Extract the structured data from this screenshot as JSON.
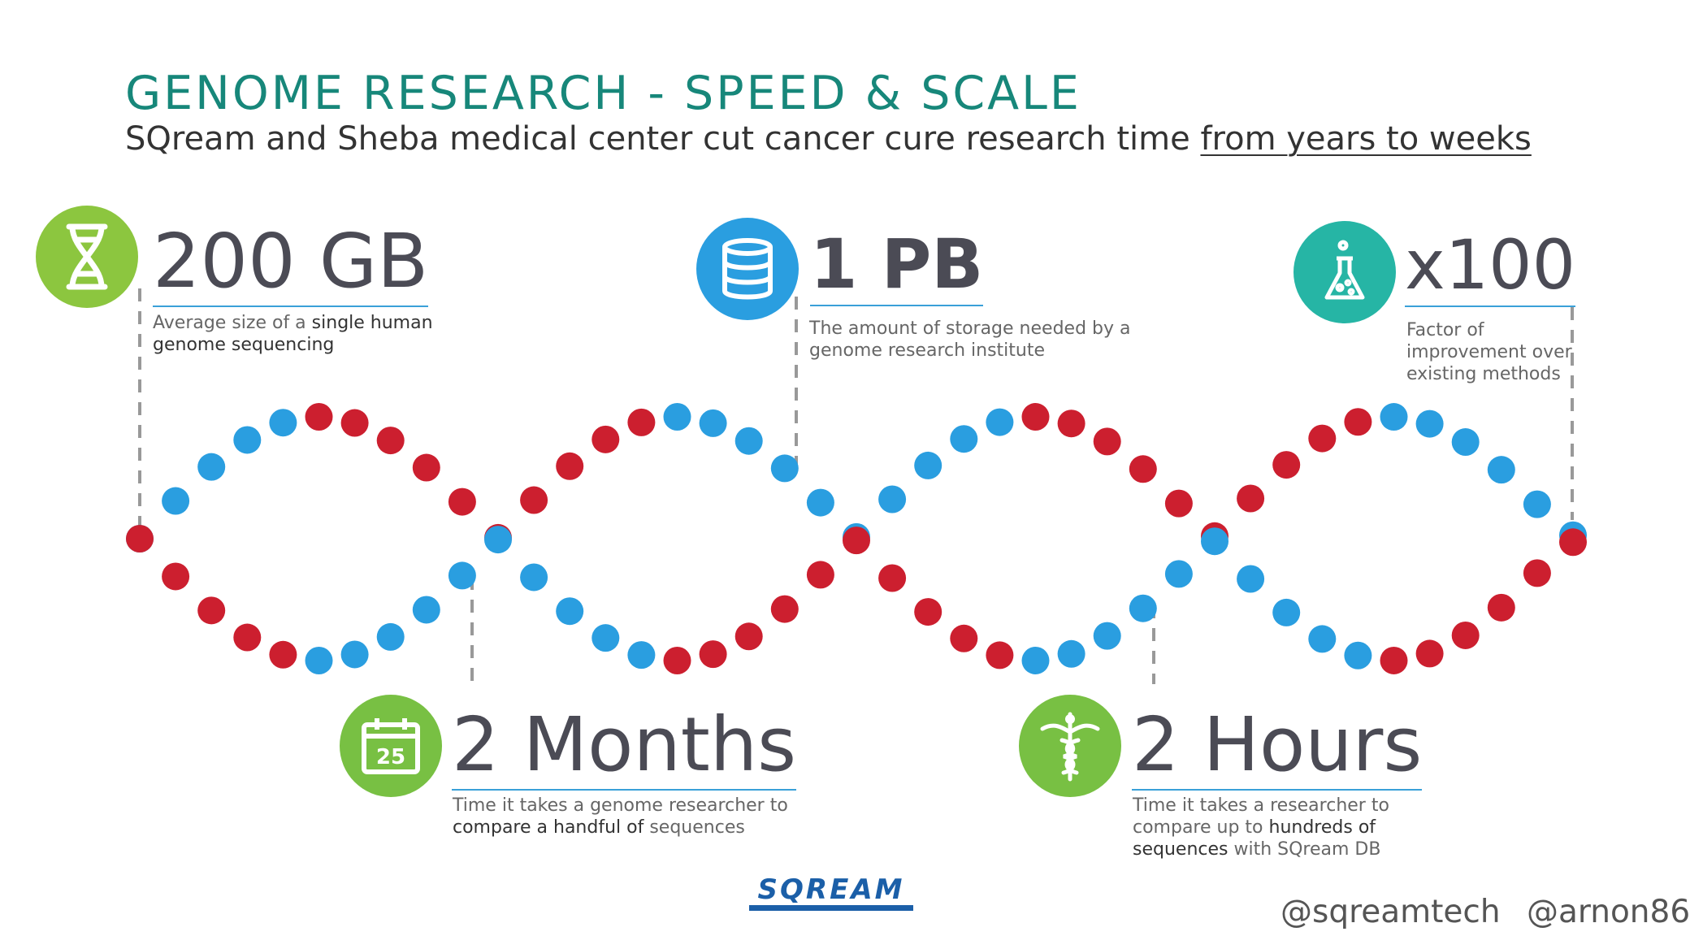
{
  "title": "GENOME RESEARCH - SPEED & SCALE",
  "subtitle": {
    "text": "SQream and Sheba medical center cut cancer cure research time",
    "emphasis": "from years to weeks"
  },
  "stats": [
    {
      "value": "200 GB",
      "desc_line1_pre": "Average size of a ",
      "desc_line1_bold": "single human",
      "desc_line2_bold": "genome sequencing",
      "desc_line2_post": "",
      "icon": "dna-icon",
      "color": "#8cc63f"
    },
    {
      "value": "1 PB",
      "desc_line1_pre": "The amount of storage needed by a",
      "desc_line1_bold": "",
      "desc_line2_bold": "",
      "desc_line2_post": "genome research institute",
      "icon": "database-icon",
      "color": "#2a9ee0"
    },
    {
      "value": "x100",
      "desc_line1_pre": "Factor of",
      "desc_line2": "improvement over",
      "desc_line3": "existing methods",
      "icon": "flask-icon",
      "color": "#26b5a5"
    },
    {
      "value": "2 Months",
      "desc_line1_pre": "Time it takes a genome researcher to",
      "desc_line2_bold": "compare a handful of",
      "desc_line2_post": " sequences",
      "icon": "calendar-icon",
      "icon_text": "25",
      "color": "#78c043"
    },
    {
      "value": "2 Hours",
      "desc_line1_pre": "Time it takes a researcher to",
      "desc_line2_pre": "compare up to ",
      "desc_line2_bold": "hundreds of",
      "desc_line3_bold": "sequences",
      "desc_line3_post": " with SQream DB",
      "icon": "caduceus-icon",
      "color": "#78c043"
    }
  ],
  "logo_text": "SQREAM",
  "handles": "@sqreamtech @arnon86",
  "colors": {
    "helix_blue": "#2a9ee0",
    "helix_red": "#cc1f2f",
    "teal_title": "#17877a"
  }
}
